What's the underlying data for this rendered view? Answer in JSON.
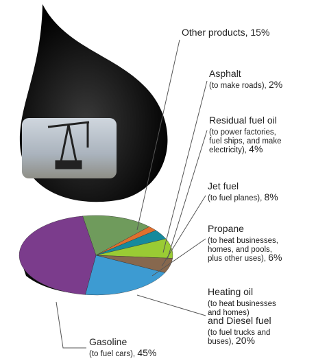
{
  "chart_data": {
    "type": "pie",
    "labels": [
      [
        "Other products,"
      ],
      [
        "Asphalt",
        "(to make roads),"
      ],
      [
        "Residual fuel oil",
        "(to power factories,",
        "fuel ships, and make",
        "electricity),"
      ],
      [
        "Jet fuel",
        "(to fuel planes),"
      ],
      [
        "Propane",
        "(to heat businesses,",
        "homes, and pools,",
        "plus other uses),"
      ],
      [
        "Heating oil",
        "(to heat businesses",
        "and homes)",
        "and Diesel fuel",
        "(to fuel trucks and",
        "buses),"
      ],
      [
        "Gasoline",
        "(to fuel cars),"
      ]
    ],
    "values": [
      15,
      2,
      4,
      8,
      6,
      20,
      45
    ],
    "value_labels": [
      "15%",
      "2%",
      "4%",
      "8%",
      "6%",
      "20%",
      "45%"
    ],
    "colors": [
      "#6f9b5c",
      "#e0702e",
      "#178a9c",
      "#9acb34",
      "#87684e",
      "#3d9bd2",
      "#7b3c8c"
    ]
  }
}
